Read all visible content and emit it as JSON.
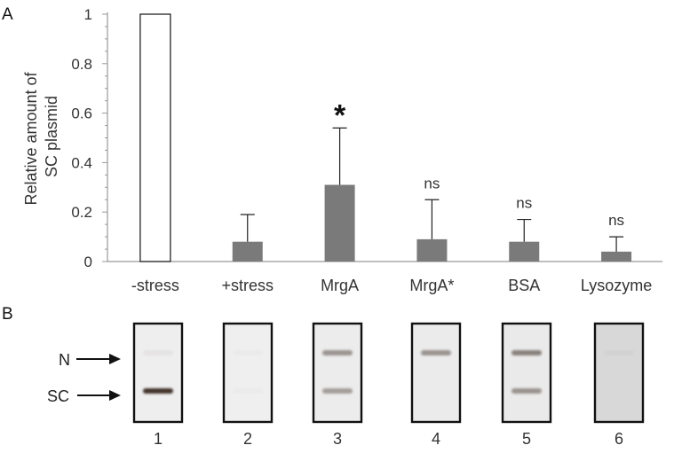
{
  "panel_a_label": "A",
  "panel_b_label": "B",
  "chart_data": {
    "type": "bar",
    "title": "",
    "xlabel": "",
    "ylabel_lines": [
      "Relative  amount of",
      "SC plasmid"
    ],
    "ylim": [
      0,
      1
    ],
    "yticks": [
      "0",
      "0.2",
      "0.4",
      "0.6",
      "0.8",
      "1"
    ],
    "categories": [
      "-stress",
      "+stress",
      "MrgA",
      "MrgA*",
      "BSA",
      "Lysozyme"
    ],
    "values": [
      1.0,
      0.08,
      0.31,
      0.09,
      0.08,
      0.04
    ],
    "errors": [
      0,
      0.11,
      0.23,
      0.16,
      0.09,
      0.06
    ],
    "significance": [
      "",
      "",
      "*",
      "ns",
      "ns",
      "ns"
    ],
    "bar_fill": [
      "#ffffff",
      "#7a7a7a",
      "#7a7a7a",
      "#7a7a7a",
      "#7a7a7a",
      "#7a7a7a"
    ],
    "grid": false
  },
  "gel": {
    "band_labels": [
      "N",
      "SC"
    ],
    "lanes": [
      {
        "number": "1",
        "n_band": 0.05,
        "sc_band": 0.95,
        "background": "#eeeeee"
      },
      {
        "number": "2",
        "n_band": 0.02,
        "sc_band": 0.02,
        "background": "#efefef"
      },
      {
        "number": "3",
        "n_band": 0.45,
        "sc_band": 0.4,
        "background": "#ececec"
      },
      {
        "number": "4",
        "n_band": 0.45,
        "sc_band": 0.0,
        "background": "#ebebeb"
      },
      {
        "number": "5",
        "n_band": 0.55,
        "sc_band": 0.45,
        "background": "#eaeaea"
      },
      {
        "number": "6",
        "n_band": 0.03,
        "sc_band": 0.0,
        "background": "#d8d8d8"
      }
    ]
  }
}
